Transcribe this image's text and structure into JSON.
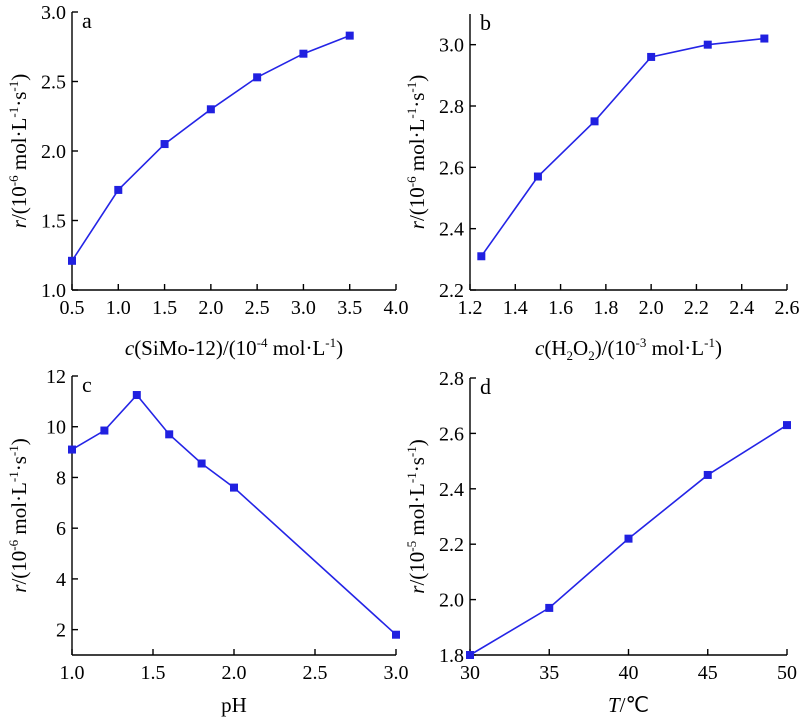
{
  "chart_data": [
    {
      "type": "line",
      "panel_label": "a",
      "ylabel": {
        "italic": "r",
        "text": "/(10",
        "sup": "-6",
        "rest": " mol·L",
        "sup2": "-1",
        "dot": "·s",
        "sup3": "-1",
        "close": ")"
      },
      "xlabel": {
        "italic": "c",
        "text": "(SiMo-12)/(10",
        "sup": "-4",
        "rest": " mol·L",
        "sup2": "-1",
        "close": ")"
      },
      "xlim": [
        0.5,
        4.0
      ],
      "ylim": [
        1.0,
        3.0
      ],
      "xticks": [
        0.5,
        1.0,
        1.5,
        2.0,
        2.5,
        3.0,
        3.5,
        4.0
      ],
      "xtick_labels": [
        "0.5",
        "1.0",
        "1.5",
        "2.0",
        "2.5",
        "3.0",
        "3.5",
        "4.0"
      ],
      "yticks": [
        1.0,
        1.5,
        2.0,
        2.5,
        3.0
      ],
      "ytick_labels": [
        "1.0",
        "1.5",
        "2.0",
        "2.5",
        "3.0"
      ],
      "x": [
        0.5,
        1.0,
        1.5,
        2.0,
        2.5,
        3.0,
        3.5
      ],
      "y": [
        1.21,
        1.72,
        2.05,
        2.3,
        2.53,
        2.7,
        2.83
      ]
    },
    {
      "type": "line",
      "panel_label": "b",
      "ylabel": {
        "italic": "r",
        "text": "/(10",
        "sup": "-6",
        "rest": " mol·L",
        "sup2": "-1",
        "dot": "·s",
        "sup3": "-1",
        "close": ")"
      },
      "xlabel": {
        "italic": "c",
        "text": "(H",
        "sub": "2",
        "text2": "O",
        "sub2": "2",
        "text3": ")/(10",
        "sup": "-3",
        "rest": " mol·L",
        "sup2": "-1",
        "close": ")"
      },
      "xlim": [
        1.2,
        2.6
      ],
      "ylim": [
        2.2,
        3.1
      ],
      "xticks": [
        1.2,
        1.4,
        1.6,
        1.8,
        2.0,
        2.2,
        2.4,
        2.6
      ],
      "xtick_labels": [
        "1.2",
        "1.4",
        "1.6",
        "1.8",
        "2.0",
        "2.2",
        "2.4",
        "2.6"
      ],
      "yticks": [
        2.2,
        2.4,
        2.6,
        2.8,
        3.0
      ],
      "ytick_labels": [
        "2.2",
        "2.4",
        "2.6",
        "2.8",
        "3.0"
      ],
      "x": [
        1.25,
        1.5,
        1.75,
        2.0,
        2.25,
        2.5
      ],
      "y": [
        2.31,
        2.57,
        2.75,
        2.96,
        3.0,
        3.02
      ]
    },
    {
      "type": "line",
      "panel_label": "c",
      "ylabel": {
        "italic": "r",
        "text": "/(10",
        "sup": "-6",
        "rest": " mol·L",
        "sup2": "-1",
        "dot": "·s",
        "sup3": "-1",
        "close": ")"
      },
      "xlabel": {
        "text": "pH"
      },
      "xlim": [
        1.0,
        3.0
      ],
      "ylim": [
        1.0,
        12.0
      ],
      "xticks": [
        1.0,
        1.5,
        2.0,
        2.5,
        3.0
      ],
      "xtick_labels": [
        "1.0",
        "1.5",
        "2.0",
        "2.5",
        "3.0"
      ],
      "yticks": [
        2,
        4,
        6,
        8,
        10,
        12
      ],
      "ytick_labels": [
        "2",
        "4",
        "6",
        "8",
        "10",
        "12"
      ],
      "x": [
        1.0,
        1.2,
        1.4,
        1.6,
        1.8,
        2.0,
        3.0
      ],
      "y": [
        9.1,
        9.85,
        11.25,
        9.7,
        8.55,
        7.6,
        1.8
      ]
    },
    {
      "type": "line",
      "panel_label": "d",
      "ylabel": {
        "italic": "r",
        "text": "/(10",
        "sup": "-5",
        "rest": " mol·L",
        "sup2": "-1",
        "dot": "·s",
        "sup3": "-1",
        "close": ")"
      },
      "xlabel": {
        "italic": "T",
        "text": "/℃"
      },
      "xlim": [
        30,
        50
      ],
      "ylim": [
        1.8,
        2.8
      ],
      "xticks": [
        30,
        35,
        40,
        45,
        50
      ],
      "xtick_labels": [
        "30",
        "35",
        "40",
        "45",
        "50"
      ],
      "yticks": [
        1.8,
        2.0,
        2.2,
        2.4,
        2.6,
        2.8
      ],
      "ytick_labels": [
        "1.8",
        "2.0",
        "2.2",
        "2.4",
        "2.6",
        "2.8"
      ],
      "x": [
        30,
        35,
        40,
        45,
        50
      ],
      "y": [
        1.8,
        1.97,
        2.22,
        2.45,
        2.63
      ]
    }
  ]
}
